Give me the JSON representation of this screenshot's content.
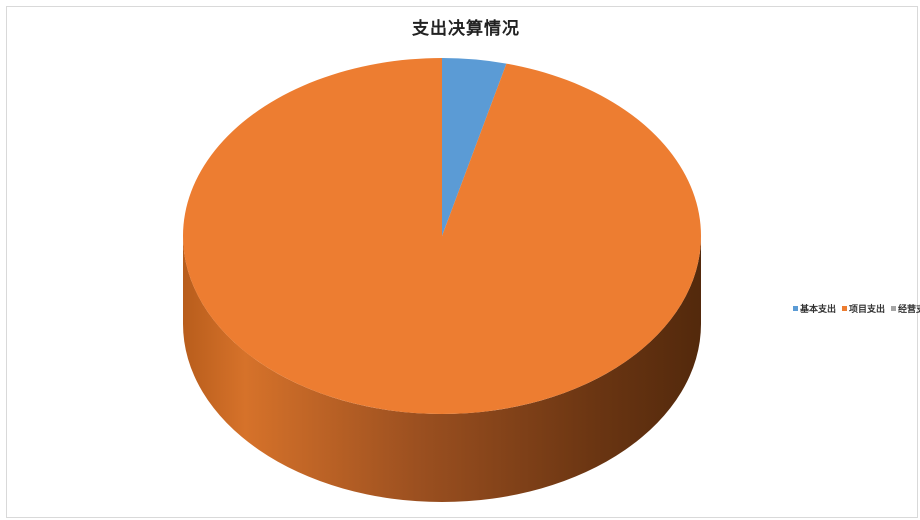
{
  "chart_data": {
    "type": "pie",
    "title": "支出决算情况",
    "legend_position": "right",
    "slices": [
      {
        "label": "基本支出",
        "value": 4.0,
        "color": "#5b9bd5"
      },
      {
        "label": "项目支出",
        "value": 96.0,
        "color": "#ed7d31"
      },
      {
        "label": "经营支出",
        "value": 0.0,
        "color": "#a5a5a5"
      }
    ]
  }
}
